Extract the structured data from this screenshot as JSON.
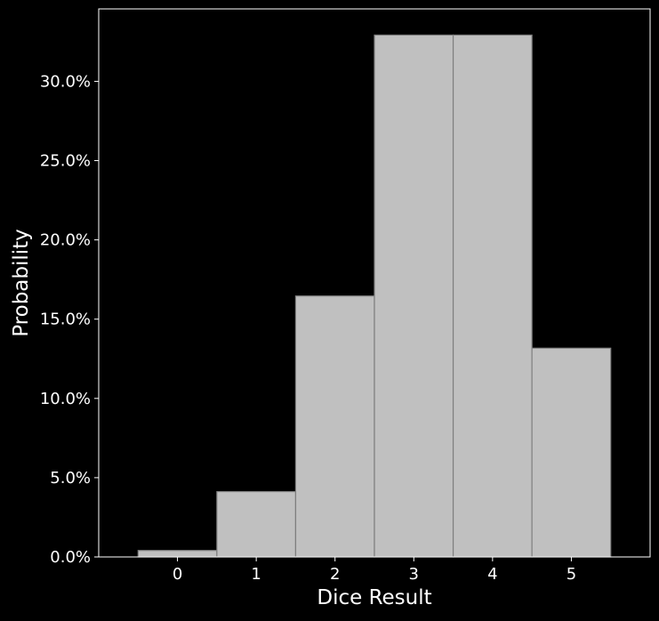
{
  "chart_data": {
    "type": "bar",
    "title": "",
    "xlabel": "Dice Result",
    "ylabel": "Probability",
    "categories": [
      "0",
      "1",
      "2",
      "3",
      "4",
      "5"
    ],
    "values": [
      0.0041,
      0.0412,
      0.1646,
      0.3292,
      0.3292,
      0.1317
    ],
    "xlim": [
      -1.0,
      6.0
    ],
    "ylim": [
      0.0,
      0.3457
    ],
    "y_ticks": [
      0.0,
      0.05,
      0.1,
      0.15,
      0.2,
      0.25,
      0.3
    ],
    "y_tick_labels": [
      "0.0%",
      "5.0%",
      "10.0%",
      "15.0%",
      "20.0%",
      "25.0%",
      "30.0%"
    ],
    "grid": false,
    "legend": "none",
    "colors": {
      "background": "#000000",
      "bar_fill": "#c0c0c0",
      "bar_edge": "#7f7f7f",
      "axes": "#ffffff",
      "text": "#ffffff"
    }
  }
}
